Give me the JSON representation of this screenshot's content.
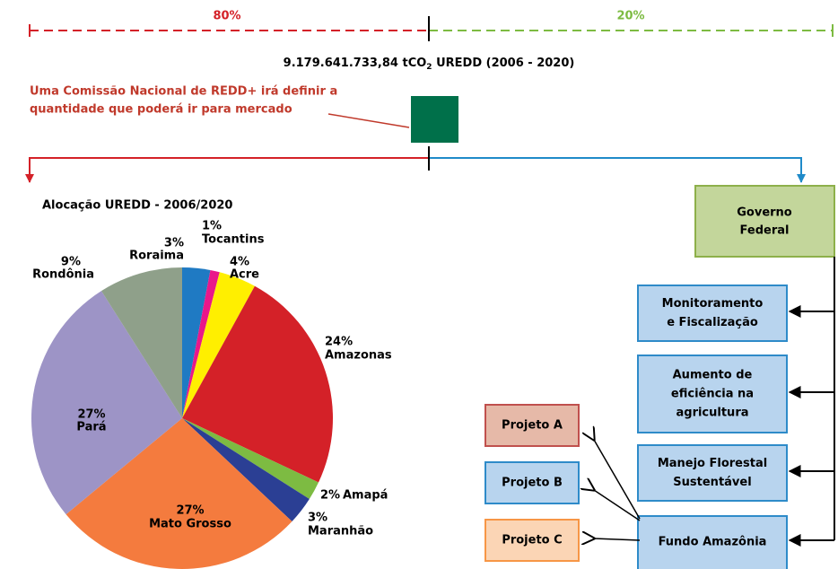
{
  "header": {
    "total_main": "9.179.641.733,84 tCO",
    "total_sub": "2",
    "total_rest": " UREDD (2006 - 2020)",
    "left_share": "80%",
    "right_share": "20%"
  },
  "note": {
    "lines": [
      "Uma Comissão Nacional de REDD+ irá definir a",
      "quantidade que poderá ir para mercado"
    ]
  },
  "chart_data": {
    "type": "pie",
    "title": "Alocação UREDD - 2006/2020",
    "categories": [
      "Roraima",
      "Tocantins",
      "Acre",
      "Amazonas",
      "Amapá",
      "Maranhão",
      "Mato Grosso",
      "Pará",
      "Rondônia"
    ],
    "values": [
      3,
      1,
      4,
      24,
      2,
      3,
      27,
      27,
      9
    ],
    "value_labels": [
      "3%",
      "1%",
      "4%",
      "24%",
      "2%",
      "3%",
      "27%",
      "27%",
      "9%"
    ],
    "colors": [
      "#1f7ac3",
      "#e9178a",
      "#ffef00",
      "#d42128",
      "#7dbb42",
      "#2b3f94",
      "#f47b3e",
      "#9d94c6",
      "#8fa08a"
    ]
  },
  "governo": {
    "lines": [
      "Governo",
      "Federal"
    ]
  },
  "programs": [
    {
      "lines": [
        "Monitoramento",
        "e Fiscalização"
      ]
    },
    {
      "lines": [
        "Aumento de",
        "eficiência na",
        "agricultura"
      ]
    },
    {
      "lines": [
        "Manejo Florestal",
        "Sustentável"
      ]
    },
    {
      "lines": [
        "Fundo Amazônia"
      ]
    }
  ],
  "projects": [
    "Projeto A",
    "Projeto B",
    "Projeto C"
  ]
}
